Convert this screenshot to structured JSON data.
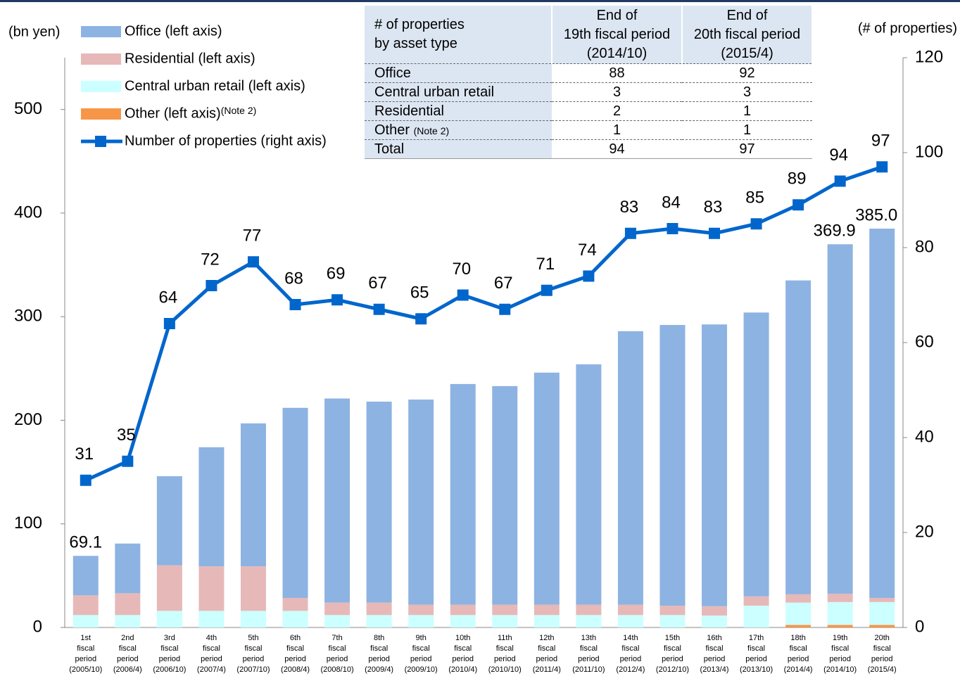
{
  "chart_data": {
    "type": "bar-line",
    "y_label": "(bn yen)",
    "y2_label": "(# of properties)",
    "categories": [
      "1st fiscal period (2005/10)",
      "2nd fiscal period (2006/4)",
      "3rd fiscal period (2006/10)",
      "4th fiscal period (2007/4)",
      "5th fiscal period (2007/10)",
      "6th fiscal period (2008/4)",
      "7th fiscal period (2008/10)",
      "8th fiscal period (2009/4)",
      "9th fiscal period (2009/10)",
      "10th fiscal period (2010/4)",
      "11th fiscal period (2010/10)",
      "12th fiscal period (2011/4)",
      "13th fiscal period (2011/10)",
      "14th fiscal period (2012/4)",
      "15th fiscal period (2012/10)",
      "16th fiscal period (2013/4)",
      "17th fiscal period (2013/10)",
      "18th fiscal period (2014/4)",
      "19th fiscal period (2014/10)",
      "20th fiscal period (2015/4)"
    ],
    "series": [
      {
        "name": "Office (left axis)",
        "type": "bar",
        "color": "#8db3e2",
        "values": [
          38.1,
          48,
          86,
          115,
          138,
          183.5,
          197,
          194,
          198,
          213,
          211,
          224,
          232,
          264,
          271,
          272,
          274,
          303,
          337.4,
          356.5
        ]
      },
      {
        "name": "Residential (left axis)",
        "type": "bar",
        "color": "#e6b9b8",
        "values": [
          19,
          21,
          44,
          43,
          43,
          12.5,
          12,
          12,
          10,
          10,
          10,
          10,
          10,
          10,
          9,
          9,
          9,
          8,
          8,
          4
        ]
      },
      {
        "name": "Central urban retail (left axis)",
        "type": "bar",
        "color": "#ccffff",
        "values": [
          12,
          12,
          16,
          16,
          16,
          16,
          12,
          12,
          12,
          12,
          12,
          12,
          12,
          12,
          12,
          11.5,
          21,
          21.5,
          22,
          22
        ]
      },
      {
        "name": "Other (left axis)",
        "note": "(Note 2)",
        "type": "bar",
        "color": "#f79646",
        "values": [
          0,
          0,
          0,
          0,
          0,
          0,
          0,
          0,
          0,
          0,
          0,
          0,
          0,
          0,
          0,
          0,
          0,
          2.5,
          2.5,
          2.5
        ]
      },
      {
        "name": "Number of properties (right axis)",
        "type": "line",
        "axis": "y2",
        "color": "#0066cc",
        "values": [
          31,
          35,
          64,
          72,
          77,
          68,
          69,
          67,
          65,
          70,
          67,
          71,
          74,
          83,
          84,
          83,
          85,
          89,
          94,
          97
        ]
      }
    ],
    "annotations": [
      {
        "index": 0,
        "value": 69.1,
        "label": "69.1"
      },
      {
        "index": 18,
        "value": 369.9,
        "label": "369.9"
      },
      {
        "index": 19,
        "value": 385.0,
        "label": "385.0"
      }
    ],
    "ylim": [
      0,
      550
    ],
    "yticks": [
      0,
      100,
      200,
      300,
      400,
      500
    ],
    "y2lim": [
      0,
      120
    ],
    "y2ticks": [
      0,
      20,
      40,
      60,
      80,
      100,
      120
    ],
    "legend": "top-left"
  },
  "table": {
    "header": [
      "# of properties\nby asset type",
      "End of\n19th fiscal period\n(2014/10)",
      "End of\n20th fiscal period\n(2015/4)"
    ],
    "rows": [
      [
        "Office",
        88,
        92
      ],
      [
        "Central urban retail",
        3,
        3
      ],
      [
        "Residential",
        2,
        1
      ],
      [
        "Other",
        1,
        1
      ],
      [
        "Total",
        94,
        97
      ]
    ],
    "note": "(Note 2)",
    "note_row": 3
  }
}
